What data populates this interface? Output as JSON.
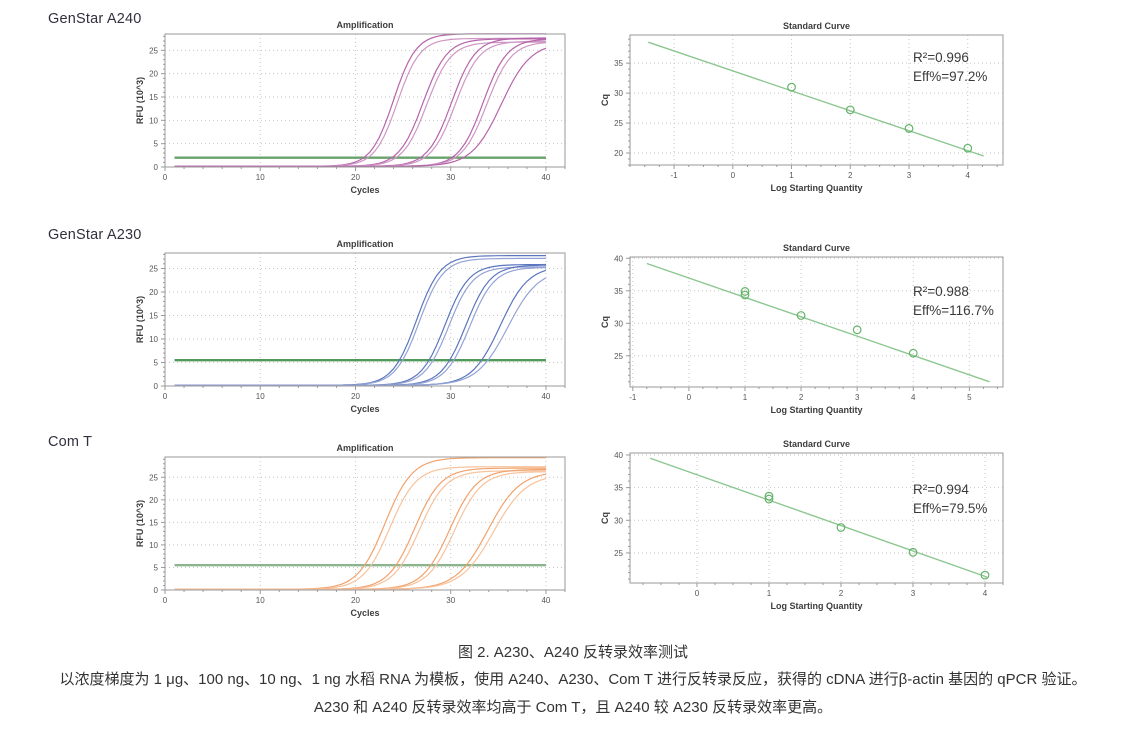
{
  "rows": [
    {
      "label": "GenStar A240",
      "amp_chart": 0,
      "sc_chart": 1
    },
    {
      "label": "GenStar A230",
      "amp_chart": 2,
      "sc_chart": 3
    },
    {
      "label": "Com T",
      "amp_chart": 4,
      "sc_chart": 5
    }
  ],
  "caption": {
    "title": "图 2. A230、A240 反转录效率测试",
    "line2": "以浓度梯度为 1 μg、100 ng、10 ng、1 ng 水稻 RNA 为模板，使用 A240、A230、Com T 进行反转录反应，获得的 cDNA 进行β-actin 基因的 qPCR 验证。",
    "line3": "A230 和 A240 反转录效率均高于 Com T，且 A240 较 A230 反转录效率更高。"
  },
  "colors": {
    "grid": "#c6c6c6",
    "border": "#9a9a9a",
    "tick_text": "#555555",
    "axis_text": "#3d3d3d",
    "fit_line": "#8cc790",
    "marker": "#62b368",
    "annotation": "#3a3a3a",
    "magenta": "#b765ab",
    "blue": "#5b76be",
    "orange": "#f2a26b",
    "threshold_green": "#579a5b"
  },
  "chart_data": [
    {
      "panel": "GenStar A240 amplification",
      "type": "line",
      "title": "Amplification",
      "xlabel": "Cycles",
      "ylabel": "RFU (10^3)",
      "xlim": [
        0,
        42
      ],
      "ylim": [
        0,
        28.5
      ],
      "x_ticks": [
        0,
        10,
        20,
        30,
        40
      ],
      "y_ticks": [
        0,
        5,
        10,
        15,
        20,
        25
      ],
      "color": "#b765ab",
      "color_light": "#cf97c4",
      "threshold": 2.0,
      "threshold_color": "#579a5b",
      "curves": [
        {
          "midpoint": 24.0,
          "plateau": 28.4,
          "steepness": 0.85
        },
        {
          "midpoint": 24.4,
          "plateau": 27.4,
          "steepness": 0.85
        },
        {
          "midpoint": 27.1,
          "plateau": 27.3,
          "steepness": 0.8
        },
        {
          "midpoint": 27.5,
          "plateau": 26.6,
          "steepness": 0.8
        },
        {
          "midpoint": 30.1,
          "plateau": 27.5,
          "steepness": 0.8
        },
        {
          "midpoint": 30.5,
          "plateau": 26.8,
          "steepness": 0.8
        },
        {
          "midpoint": 33.4,
          "plateau": 27.3,
          "steepness": 0.8
        },
        {
          "midpoint": 33.8,
          "plateau": 26.7,
          "steepness": 0.78
        },
        {
          "midpoint": 35.3,
          "plateau": 26.5,
          "steepness": 0.65
        }
      ]
    },
    {
      "panel": "GenStar A240 standard curve",
      "type": "scatter",
      "title": "Standard Curve",
      "xlabel": "Log Starting Quantity",
      "ylabel": "Cq",
      "xlim": [
        -1.75,
        4.6
      ],
      "ylim": [
        18,
        39.7
      ],
      "x_ticks": [
        -1,
        0,
        1,
        2,
        3,
        4
      ],
      "y_ticks": [
        20,
        25,
        30,
        35
      ],
      "points": [
        [
          1,
          31.0
        ],
        [
          2,
          27.2
        ],
        [
          3,
          24.1
        ],
        [
          4,
          20.8
        ]
      ],
      "fit_line": {
        "x1": -1.44,
        "y1": 38.5,
        "x2": 4.27,
        "y2": 19.5
      },
      "r2": "R²=0.996",
      "eff": "Eff%=97.2%",
      "ann_y": 42
    },
    {
      "panel": "GenStar A230 amplification",
      "type": "line",
      "title": "Amplification",
      "xlabel": "Cycles",
      "ylabel": "RFU (10^3)",
      "xlim": [
        0,
        42
      ],
      "ylim": [
        0,
        28.3
      ],
      "x_ticks": [
        0,
        10,
        20,
        30,
        40
      ],
      "y_ticks": [
        0,
        5,
        10,
        15,
        20,
        25
      ],
      "color": "#5b76be",
      "color_light": "#93a3d6",
      "threshold": 5.5,
      "threshold_color": "#3f8f48",
      "curves": [
        {
          "midpoint": 26.4,
          "plateau": 27.6,
          "steepness": 0.8
        },
        {
          "midpoint": 26.7,
          "plateau": 27.0,
          "steepness": 0.8
        },
        {
          "midpoint": 29.4,
          "plateau": 25.7,
          "steepness": 0.8
        },
        {
          "midpoint": 29.8,
          "plateau": 25.2,
          "steepness": 0.8
        },
        {
          "midpoint": 31.6,
          "plateau": 25.6,
          "steepness": 0.78
        },
        {
          "midpoint": 32.0,
          "plateau": 25.1,
          "steepness": 0.78
        },
        {
          "midpoint": 35.2,
          "plateau": 25.4,
          "steepness": 0.68
        },
        {
          "midpoint": 36.0,
          "plateau": 24.8,
          "steepness": 0.62
        }
      ]
    },
    {
      "panel": "GenStar A230 standard curve",
      "type": "scatter",
      "title": "Standard Curve",
      "xlabel": "Log Starting Quantity",
      "ylabel": "Cq",
      "xlim": [
        -1.05,
        5.6
      ],
      "ylim": [
        20.2,
        40.2
      ],
      "x_ticks": [
        -1,
        0,
        1,
        2,
        3,
        4,
        5
      ],
      "y_ticks": [
        25,
        30,
        35,
        40
      ],
      "points": [
        [
          1,
          34.9
        ],
        [
          1,
          34.35
        ],
        [
          2,
          31.2
        ],
        [
          3,
          29.0
        ],
        [
          4,
          25.4
        ]
      ],
      "fit_line": {
        "x1": -0.75,
        "y1": 39.2,
        "x2": 5.36,
        "y2": 21.0
      },
      "r2": "R²=0.988",
      "eff": "Eff%=116.7%",
      "ann_y": 54
    },
    {
      "panel": "Com T amplification",
      "type": "line",
      "title": "Amplification",
      "xlabel": "Cycles",
      "ylabel": "RFU (10^3)",
      "xlim": [
        0,
        42
      ],
      "ylim": [
        0,
        29.5
      ],
      "x_ticks": [
        0,
        10,
        20,
        30,
        40
      ],
      "y_ticks": [
        0,
        5,
        10,
        15,
        20,
        25
      ],
      "color": "#f2a26b",
      "color_light": "#f7c29c",
      "threshold": 5.5,
      "threshold_color": "#7fae81",
      "curves": [
        {
          "midpoint": 23.1,
          "plateau": 29.2,
          "steepness": 0.7
        },
        {
          "midpoint": 23.6,
          "plateau": 27.2,
          "steepness": 0.72
        },
        {
          "midpoint": 26.2,
          "plateau": 26.9,
          "steepness": 0.72
        },
        {
          "midpoint": 26.7,
          "plateau": 26.3,
          "steepness": 0.72
        },
        {
          "midpoint": 29.9,
          "plateau": 26.6,
          "steepness": 0.7
        },
        {
          "midpoint": 30.4,
          "plateau": 26.1,
          "steepness": 0.7
        },
        {
          "midpoint": 33.9,
          "plateau": 26.2,
          "steepness": 0.6
        },
        {
          "midpoint": 34.5,
          "plateau": 25.6,
          "steepness": 0.58
        }
      ]
    },
    {
      "panel": "Com T standard curve",
      "type": "scatter",
      "title": "Standard Curve",
      "xlabel": "Log Starting Quantity",
      "ylabel": "Cq",
      "xlim": [
        -0.93,
        4.25
      ],
      "ylim": [
        20.4,
        40.3
      ],
      "x_ticks": [
        0,
        1,
        2,
        3,
        4
      ],
      "y_ticks": [
        25,
        30,
        35,
        40
      ],
      "points": [
        [
          1,
          33.7
        ],
        [
          1,
          33.25
        ],
        [
          2,
          28.9
        ],
        [
          3,
          25.1
        ],
        [
          4,
          21.6
        ]
      ],
      "fit_line": {
        "x1": -0.65,
        "y1": 39.5,
        "x2": 4.03,
        "y2": 21.3
      },
      "r2": "R²=0.994",
      "eff": "Eff%=79.5%",
      "ann_y": 56
    }
  ]
}
